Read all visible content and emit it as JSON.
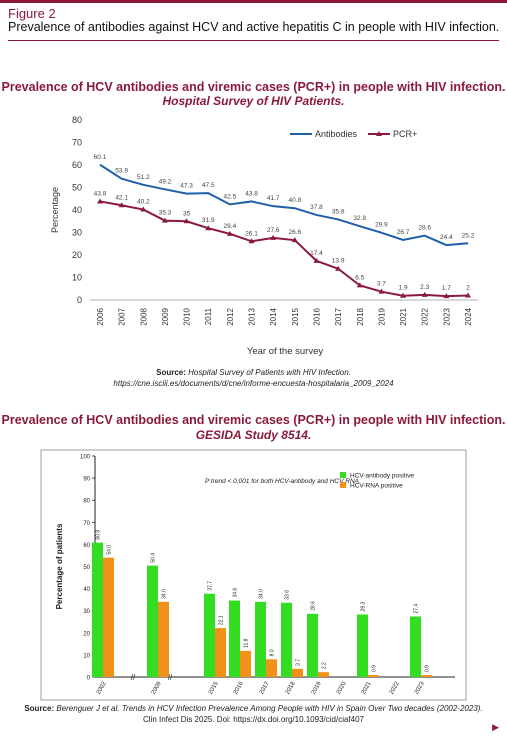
{
  "header": {
    "figure_label": "Figure 2",
    "caption": "Prevalence of antibodies against HCV and active hepatitis C in people with HIV infection."
  },
  "colors": {
    "accent": "#8b1a3a",
    "antibodies_line": "#1f5fa8",
    "pcr_line": "#8b1a3a",
    "hcv_antibody_bar": "#33dd22",
    "hcv_rna_bar": "#f0921a"
  },
  "chart1": {
    "title": "Prevalence of HCV antibodies and viremic cases (PCR+) in people with HIV infection.",
    "subtitle": "Hospital Survey of HIV Patients.",
    "source_label": "Source:",
    "source_text": "Hospital Survey of Patients with HIV Infection.",
    "source_url": "https://cne.isciii.es/documents/d/cne/informe-encuesta-hospitalaria_2009_2024"
  },
  "chart2": {
    "title": "Prevalence of HCV antibodies and viremic cases (PCR+) in people with HIV infection.",
    "subtitle": "GESIDA Study 8514.",
    "source_label": "Source:",
    "source_text": "Berenguer J et al. Trends in HCV Infection Prevalence Among People with HIV in Spain Over Two decades (2002-2023).",
    "source_text2": "Clin Infect Dis 2025. Doi: https://dx.doi.org/10.1093/cid/ciaf407"
  },
  "footer": {
    "arrow_icon": "triangle-right-icon"
  },
  "chart_data": [
    {
      "type": "line",
      "xlabel": "Year of the survey",
      "ylabel": "Percentage",
      "ylim": [
        0,
        80
      ],
      "yticks": [
        0,
        10,
        20,
        30,
        40,
        50,
        60,
        70,
        80
      ],
      "legend_position": "top-right",
      "x": [
        "2006",
        "2007",
        "2008",
        "2009",
        "2010",
        "2011",
        "2012",
        "2013",
        "2014",
        "2015",
        "2016",
        "2017",
        "2018",
        "2019",
        "2021",
        "2022",
        "2023",
        "2024"
      ],
      "series": [
        {
          "name": "Antibodies",
          "values": [
            60.1,
            53.9,
            51.2,
            49.2,
            47.3,
            47.5,
            42.5,
            43.8,
            41.7,
            40.8,
            37.8,
            35.8,
            32.8,
            29.9,
            26.7,
            28.6,
            24.4,
            25.2
          ],
          "labels": [
            "60.1",
            "53.9",
            "51.2",
            "49.2",
            "47.3",
            "47.5",
            "42.5",
            "43.8",
            "41.7",
            "40.8",
            "37.8",
            "35.8",
            "32.8",
            "29.9",
            "26.7",
            "28.6",
            "24.4",
            "25.2"
          ]
        },
        {
          "name": "PCR+",
          "values": [
            43.8,
            42.1,
            40.2,
            35.3,
            35,
            31.9,
            29.4,
            26.1,
            27.6,
            26.6,
            17.4,
            13.9,
            6.5,
            3.7,
            1.9,
            2.3,
            1.7,
            2
          ],
          "labels": [
            "43.8",
            "42.1",
            "40.2",
            "35.3",
            "35",
            "31.9",
            "29.4",
            "26.1",
            "27.6",
            "26.6",
            "17.4",
            "13.9",
            "6.5",
            "3.7",
            "1.9",
            "2.3",
            "1.7",
            "2"
          ]
        }
      ]
    },
    {
      "type": "bar",
      "ylabel": "Percentage of patients",
      "ylim": [
        0,
        100
      ],
      "yticks": [
        0,
        10,
        20,
        30,
        40,
        50,
        60,
        70,
        80,
        90,
        100
      ],
      "annotation": "P trend < 0.001 for both HCV-antibody and HCV RNA",
      "legend_position": "top-right",
      "categories": [
        "2002",
        "2009",
        "2015",
        "2016",
        "2017",
        "2018",
        "2019",
        "2020",
        "2021",
        "2022",
        "2023"
      ],
      "series": [
        {
          "name": "HCV-antibody positive",
          "values": [
            60.8,
            50.4,
            37.7,
            34.6,
            34.0,
            33.6,
            28.6,
            null,
            28.3,
            null,
            27.4
          ],
          "labels": [
            "60.8",
            "50.4",
            "37.7",
            "34.6",
            "34.0",
            "33.6",
            "28.6",
            "",
            "28.3",
            "",
            "27.4"
          ]
        },
        {
          "name": "HCV-RNA positive",
          "values": [
            54.0,
            34.0,
            22.1,
            11.8,
            8.0,
            3.7,
            2.2,
            null,
            0.9,
            null,
            0.9
          ],
          "labels": [
            "54.0",
            "34.0",
            "22.1",
            "11.8",
            "8.0",
            "3.7",
            "2.2",
            "",
            "0.9",
            "",
            "0.9"
          ]
        }
      ]
    }
  ]
}
